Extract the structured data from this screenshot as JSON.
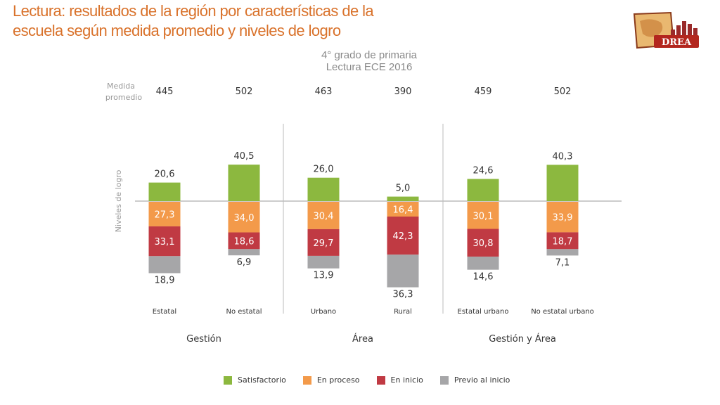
{
  "header": {
    "title_line1": "Lectura: resultados de la región por características de la",
    "title_line2": "escuela según medida promedio y niveles de   logro",
    "subtitle_line1": "4° grado de primaria",
    "subtitle_line2": "Lectura ECE 2016",
    "logo_text": "DREA"
  },
  "colors": {
    "satisfactorio": "#8cb83f",
    "en_proceso": "#f39a4a",
    "en_inicio": "#c03a43",
    "previo": "#a6a6a8",
    "title": "#d9722b"
  },
  "chart_data": {
    "type": "bar",
    "stacked": "diverging",
    "title": "Lectura ECE 2016",
    "medida_label": "Medida promedio",
    "ylabel": "Niveles de logro",
    "categories": [
      "Estatal",
      "No estatal",
      "Urbano",
      "Rural",
      "Estatal urbano",
      "No estatal urbano"
    ],
    "medida_promedio": [
      445,
      502,
      463,
      390,
      459,
      502
    ],
    "groups": [
      {
        "label": "Gestión",
        "categories": [
          "Estatal",
          "No estatal"
        ]
      },
      {
        "label": "Área",
        "categories": [
          "Urbano",
          "Rural"
        ]
      },
      {
        "label": "Gestión y Área",
        "categories": [
          "Estatal urbano",
          "No estatal urbano"
        ]
      }
    ],
    "series": [
      {
        "name": "Satisfactorio",
        "key": "satisfactorio",
        "values": [
          20.6,
          40.5,
          26.0,
          5.0,
          24.6,
          40.3
        ],
        "labels": [
          "20,6",
          "40,5",
          "26,0",
          "5,0",
          "24,6",
          "40,3"
        ]
      },
      {
        "name": "En proceso",
        "key": "en_proceso",
        "values": [
          27.3,
          34.0,
          30.4,
          16.4,
          30.1,
          33.9
        ],
        "labels": [
          "27,3",
          "34,0",
          "30,4",
          "16,4",
          "30,1",
          "33,9"
        ]
      },
      {
        "name": "En inicio",
        "key": "en_inicio",
        "values": [
          33.1,
          18.6,
          29.7,
          42.3,
          30.8,
          18.7
        ],
        "labels": [
          "33,1",
          "18,6",
          "29,7",
          "42,3",
          "30,8",
          "18,7"
        ]
      },
      {
        "name": "Previo al inicio",
        "key": "previo",
        "values": [
          18.9,
          6.9,
          13.9,
          36.3,
          14.6,
          7.1
        ],
        "labels": [
          "18,9",
          "6,9",
          "13,9",
          "36,3",
          "14,6",
          "7,1"
        ]
      }
    ]
  }
}
